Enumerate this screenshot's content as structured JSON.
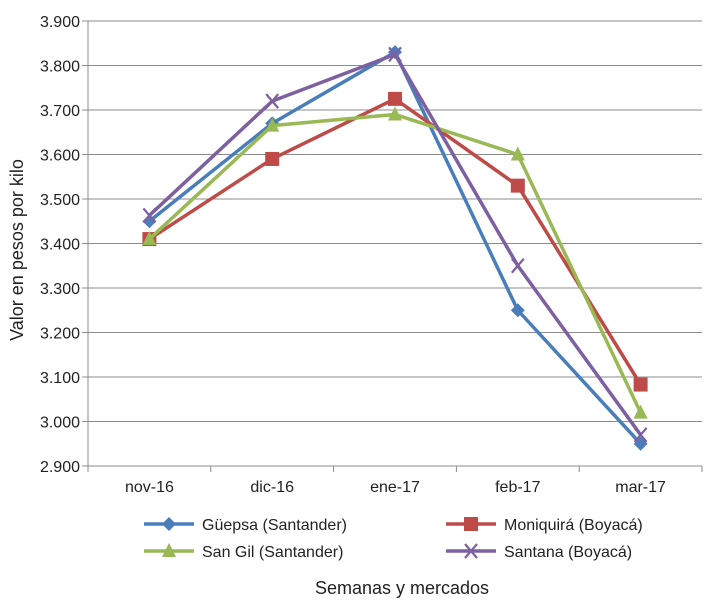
{
  "chart_data": {
    "type": "line",
    "title": "",
    "xlabel": "Semanas y mercados",
    "ylabel": "Valor en pesos por kilo",
    "categories": [
      "nov-16",
      "dic-16",
      "ene-17",
      "feb-17",
      "mar-17"
    ],
    "ylim": [
      2900,
      3900
    ],
    "ytick_values": [
      2900,
      3000,
      3100,
      3200,
      3300,
      3400,
      3500,
      3600,
      3700,
      3800,
      3900
    ],
    "ytick_labels": [
      "2.900",
      "3.000",
      "3.100",
      "3.200",
      "3.300",
      "3.400",
      "3.500",
      "3.600",
      "3.700",
      "3.800",
      "3.900"
    ],
    "grid": "horizontal",
    "legend_position": "bottom",
    "series": [
      {
        "name": "Güepsa (Santander)",
        "color": "#4a7ebb",
        "marker": "diamond",
        "values": [
          3450,
          3670,
          3830,
          3250,
          2950
        ]
      },
      {
        "name": "Moniquirá (Boyacá)",
        "color": "#be4b48",
        "marker": "square",
        "values": [
          3410,
          3590,
          3725,
          3530,
          3083
        ]
      },
      {
        "name": "San Gil (Santander)",
        "color": "#98b954",
        "marker": "triangle",
        "values": [
          3410,
          3665,
          3690,
          3600,
          3020
        ]
      },
      {
        "name": "Santana (Boyacá)",
        "color": "#7d60a0",
        "marker": "x",
        "values": [
          3463,
          3720,
          3825,
          3350,
          2970
        ]
      }
    ]
  }
}
